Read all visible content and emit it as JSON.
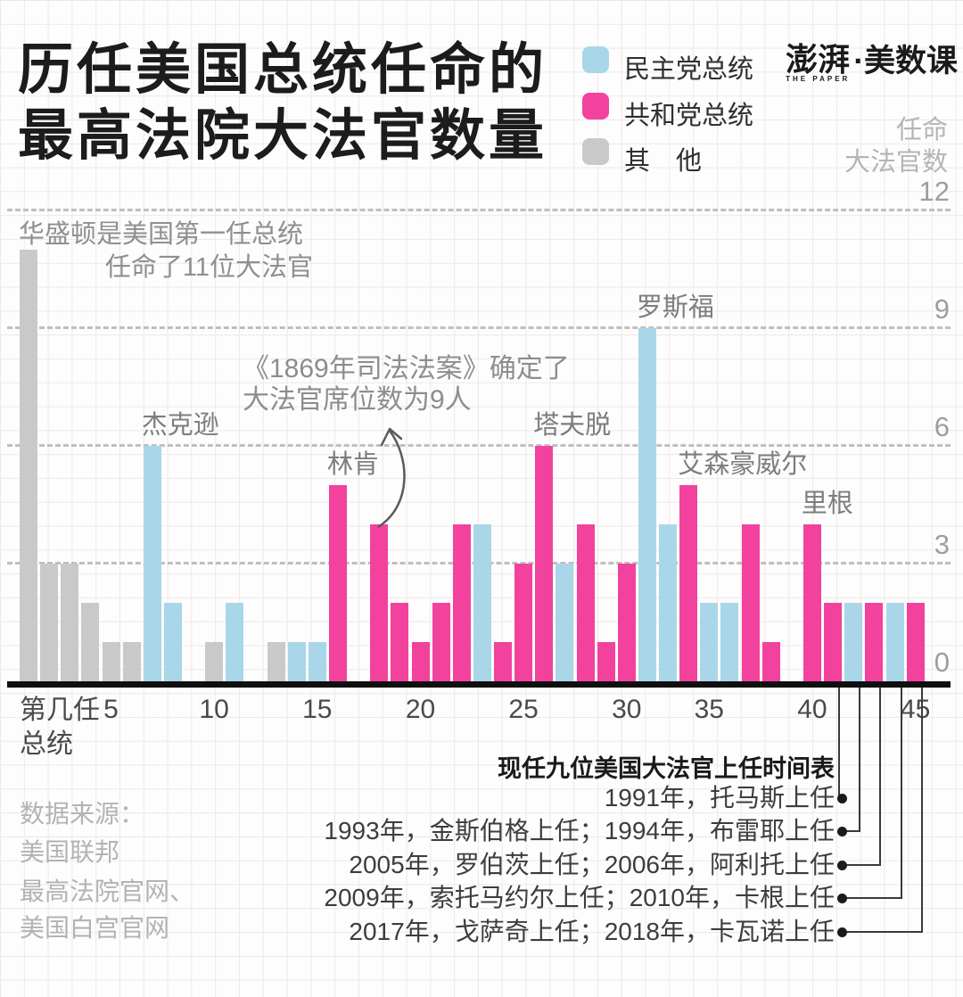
{
  "title_lines": [
    "历任美国总统任命的",
    "最高法院大法官数量"
  ],
  "logo": {
    "cn": "澎湃",
    "en": "THE PAPER",
    "suffix": "·美数课"
  },
  "y_axis_title_lines": [
    "任命",
    "大法官数"
  ],
  "x_axis_title_lines": [
    "第几任",
    "总统"
  ],
  "source_lines": [
    "数据来源：",
    "美国联邦",
    "最高法院官网、",
    "美国白宫官网"
  ],
  "annotation_washington": {
    "line1": "华盛顿是美国第一任总统",
    "line2": "任命了11位大法官"
  },
  "annotation_act": {
    "line1": "《1869年司法法案》确定了",
    "line2": "大法官席位数为9人",
    "arrow_target_slot": 18
  },
  "footer": {
    "title": "现任九位美国大法官上任时间表",
    "rows": [
      {
        "text": "1991年，托马斯上任",
        "slot": 40
      },
      {
        "text": "1993年，金斯伯格上任；1994年，布雷耶上任",
        "slot": 41
      },
      {
        "text": "2005年，罗伯茨上任；2006年，阿利托上任",
        "slot": 42
      },
      {
        "text": "2009年，索托马约尔上任；2010年，卡根上任",
        "slot": 43
      },
      {
        "text": "2017年，戈萨奇上任；2018年，卡瓦诺上任",
        "slot": 44
      }
    ]
  },
  "chart_data": {
    "type": "bar",
    "title": "历任美国总统任命的最高法院大法官数量",
    "xlabel": "第几任总统",
    "ylabel": "任命大法官数",
    "ylim": [
      0,
      12
    ],
    "grid": "dashed horizontal lines at 3, 6, 9, 12",
    "legend_position": "top-center",
    "legend": [
      {
        "key": "d",
        "label": "民主党总统",
        "color": "#a9d6e9"
      },
      {
        "key": "r",
        "label": "共和党总统",
        "color": "#f2429e"
      },
      {
        "key": "o",
        "label": "其　他",
        "color": "#c9c9c9"
      }
    ],
    "colors": {
      "democrat": "#a9d6e9",
      "republican": "#f2429e",
      "other": "#c9c9c9"
    },
    "y_ticks": [
      {
        "label": "0",
        "value": 0
      },
      {
        "label": "3",
        "value": 3
      },
      {
        "label": "6",
        "value": 6
      },
      {
        "label": "9",
        "value": 9
      },
      {
        "label": "12",
        "value": 12
      }
    ],
    "x_ticks": [
      {
        "label": "5",
        "slot": 5
      },
      {
        "label": "10",
        "slot": 10
      },
      {
        "label": "15",
        "slot": 15
      },
      {
        "label": "20",
        "slot": 20
      },
      {
        "label": "25",
        "slot": 25
      },
      {
        "label": "30",
        "slot": 30
      },
      {
        "label": "35",
        "slot": 34
      },
      {
        "label": "40",
        "slot": 39
      },
      {
        "label": "45",
        "slot": 44
      }
    ],
    "bars": [
      {
        "slot": 1,
        "value": 11,
        "party": "o"
      },
      {
        "slot": 2,
        "value": 3,
        "party": "o"
      },
      {
        "slot": 3,
        "value": 3,
        "party": "o"
      },
      {
        "slot": 4,
        "value": 2,
        "party": "o"
      },
      {
        "slot": 5,
        "value": 1,
        "party": "o"
      },
      {
        "slot": 6,
        "value": 1,
        "party": "o"
      },
      {
        "slot": 7,
        "value": 6,
        "party": "d"
      },
      {
        "slot": 8,
        "value": 2,
        "party": "d"
      },
      {
        "slot": 10,
        "value": 1,
        "party": "o"
      },
      {
        "slot": 11,
        "value": 2,
        "party": "d"
      },
      {
        "slot": 13,
        "value": 1,
        "party": "o"
      },
      {
        "slot": 14,
        "value": 1,
        "party": "d"
      },
      {
        "slot": 15,
        "value": 1,
        "party": "d"
      },
      {
        "slot": 16,
        "value": 5,
        "party": "r"
      },
      {
        "slot": 18,
        "value": 4,
        "party": "r"
      },
      {
        "slot": 19,
        "value": 2,
        "party": "r"
      },
      {
        "slot": 20,
        "value": 1,
        "party": "r"
      },
      {
        "slot": 21,
        "value": 2,
        "party": "r"
      },
      {
        "slot": 22,
        "value": 4,
        "party": "r"
      },
      {
        "slot": 23,
        "value": 4,
        "party": "d"
      },
      {
        "slot": 24,
        "value": 1,
        "party": "r"
      },
      {
        "slot": 25,
        "value": 3,
        "party": "r"
      },
      {
        "slot": 26,
        "value": 6,
        "party": "r"
      },
      {
        "slot": 27,
        "value": 3,
        "party": "d"
      },
      {
        "slot": 28,
        "value": 4,
        "party": "r"
      },
      {
        "slot": 29,
        "value": 1,
        "party": "r"
      },
      {
        "slot": 30,
        "value": 3,
        "party": "r"
      },
      {
        "slot": 31,
        "value": 9,
        "party": "d"
      },
      {
        "slot": 32,
        "value": 4,
        "party": "d"
      },
      {
        "slot": 33,
        "value": 5,
        "party": "r"
      },
      {
        "slot": 34,
        "value": 2,
        "party": "d"
      },
      {
        "slot": 35,
        "value": 2,
        "party": "d"
      },
      {
        "slot": 36,
        "value": 4,
        "party": "r"
      },
      {
        "slot": 37,
        "value": 1,
        "party": "r"
      },
      {
        "slot": 39,
        "value": 4,
        "party": "r"
      },
      {
        "slot": 40,
        "value": 2,
        "party": "r"
      },
      {
        "slot": 41,
        "value": 2,
        "party": "d"
      },
      {
        "slot": 42,
        "value": 2,
        "party": "r"
      },
      {
        "slot": 43,
        "value": 2,
        "party": "d"
      },
      {
        "slot": 44,
        "value": 2,
        "party": "r"
      }
    ],
    "name_labels": [
      {
        "text": "杰克逊",
        "slot": 7
      },
      {
        "text": "林肯",
        "slot": 16
      },
      {
        "text": "塔夫脱",
        "slot": 26
      },
      {
        "text": "罗斯福",
        "slot": 31
      },
      {
        "text": "艾森豪威尔",
        "slot": 33
      },
      {
        "text": "里根",
        "slot": 39
      }
    ]
  }
}
